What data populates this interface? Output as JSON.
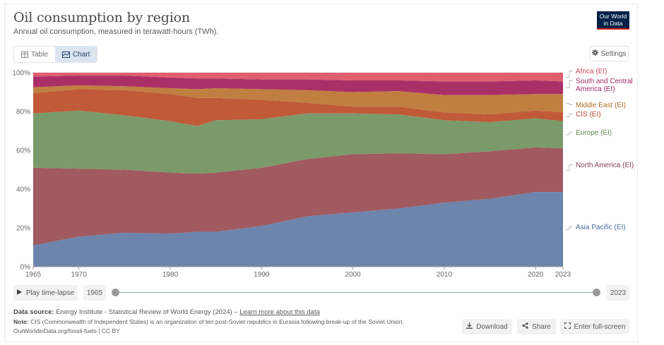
{
  "header": {
    "title": "Oil consumption by region",
    "subtitle": "Annual oil consumption, measured in terawatt-hours (TWh).",
    "logo_line1": "Our World",
    "logo_line2": "in Data"
  },
  "tabs": [
    {
      "label": "Table",
      "icon": "table-icon",
      "active": false
    },
    {
      "label": "Chart",
      "icon": "chart-icon",
      "active": true
    }
  ],
  "settings_label": "Settings",
  "timeline": {
    "play_label": "Play time-lapse",
    "start_year": "1965",
    "end_year": "2023"
  },
  "footer": {
    "source_label": "Data source:",
    "source_text": "Energy Institute - Statistical Review of World Energy (2024) –",
    "learn_more": "Learn more about this data",
    "note_label": "Note:",
    "note_text": "CIS (Commonwealth of Independent States) is an organization of ten post-Soviet republics in Eurasia following break-up of the Soviet Union.",
    "url_text": "OurWorldinData.org/fossil-fuels | CC BY",
    "download_label": "Download",
    "share_label": "Share",
    "fullscreen_label": "Enter full-screen"
  },
  "chart_data": {
    "type": "area",
    "stacked": true,
    "relative": true,
    "title": "Oil consumption by region",
    "subtitle": "Annual oil consumption, measured in terawatt-hours (TWh).",
    "xlabel": "",
    "ylabel": "",
    "ylim": [
      0,
      100
    ],
    "xlim": [
      1965,
      2023
    ],
    "y_ticks": [
      "0%",
      "20%",
      "40%",
      "60%",
      "80%",
      "100%"
    ],
    "y_tick_values": [
      0,
      20,
      40,
      60,
      80,
      100
    ],
    "x_ticks": [
      "1965",
      "1970",
      "1980",
      "1990",
      "2000",
      "2010",
      "2020",
      "2023"
    ],
    "x_tick_values": [
      1965,
      1970,
      1980,
      1990,
      2000,
      2010,
      2020,
      2023
    ],
    "grid": true,
    "legend_position": "right",
    "x": [
      1965,
      1970,
      1975,
      1980,
      1983,
      1985,
      1990,
      1995,
      2000,
      2005,
      2010,
      2015,
      2020,
      2023
    ],
    "series": [
      {
        "name": "Asia Pacific (EI)",
        "color": "#6d84ad",
        "values": [
          11,
          15.5,
          17.5,
          17,
          18,
          18,
          21,
          26,
          28,
          30,
          33,
          35,
          38.5,
          38.5
        ]
      },
      {
        "name": "North America (EI)",
        "color": "#a05a60",
        "values": [
          40,
          35,
          32.5,
          31.5,
          30,
          30.5,
          30,
          29.5,
          30,
          28.5,
          25,
          24.5,
          23,
          22.5
        ]
      },
      {
        "name": "Europe (EI)",
        "color": "#7a9a6a",
        "values": [
          28,
          30,
          28,
          26.5,
          24.5,
          27,
          25,
          23.5,
          21,
          20,
          17.5,
          15,
          15,
          14
        ]
      },
      {
        "name": "CIS (EI)",
        "color": "#c05a38",
        "values": [
          10.5,
          11,
          13,
          14,
          14.5,
          11.5,
          10,
          5.5,
          3.5,
          4,
          4,
          4,
          4,
          4.5
        ]
      },
      {
        "name": "Middle East (EI)",
        "color": "#c07f40",
        "values": [
          3,
          2,
          2,
          3,
          4.5,
          5,
          5.5,
          6.5,
          7.5,
          8,
          9,
          10,
          8.5,
          9.5
        ]
      },
      {
        "name": "South and Central America (EI)",
        "color": "#ab2f67",
        "values": [
          5.5,
          5,
          5.5,
          5.5,
          5.5,
          5,
          5,
          5.5,
          6,
          5.5,
          7,
          7,
          7,
          6.5
        ]
      },
      {
        "name": "Africa (EI)",
        "color": "#df5f6f",
        "values": [
          2,
          1.5,
          1.5,
          2.5,
          3,
          3,
          3.5,
          3.5,
          4,
          4,
          4.5,
          4.5,
          4,
          4.5
        ]
      }
    ]
  }
}
